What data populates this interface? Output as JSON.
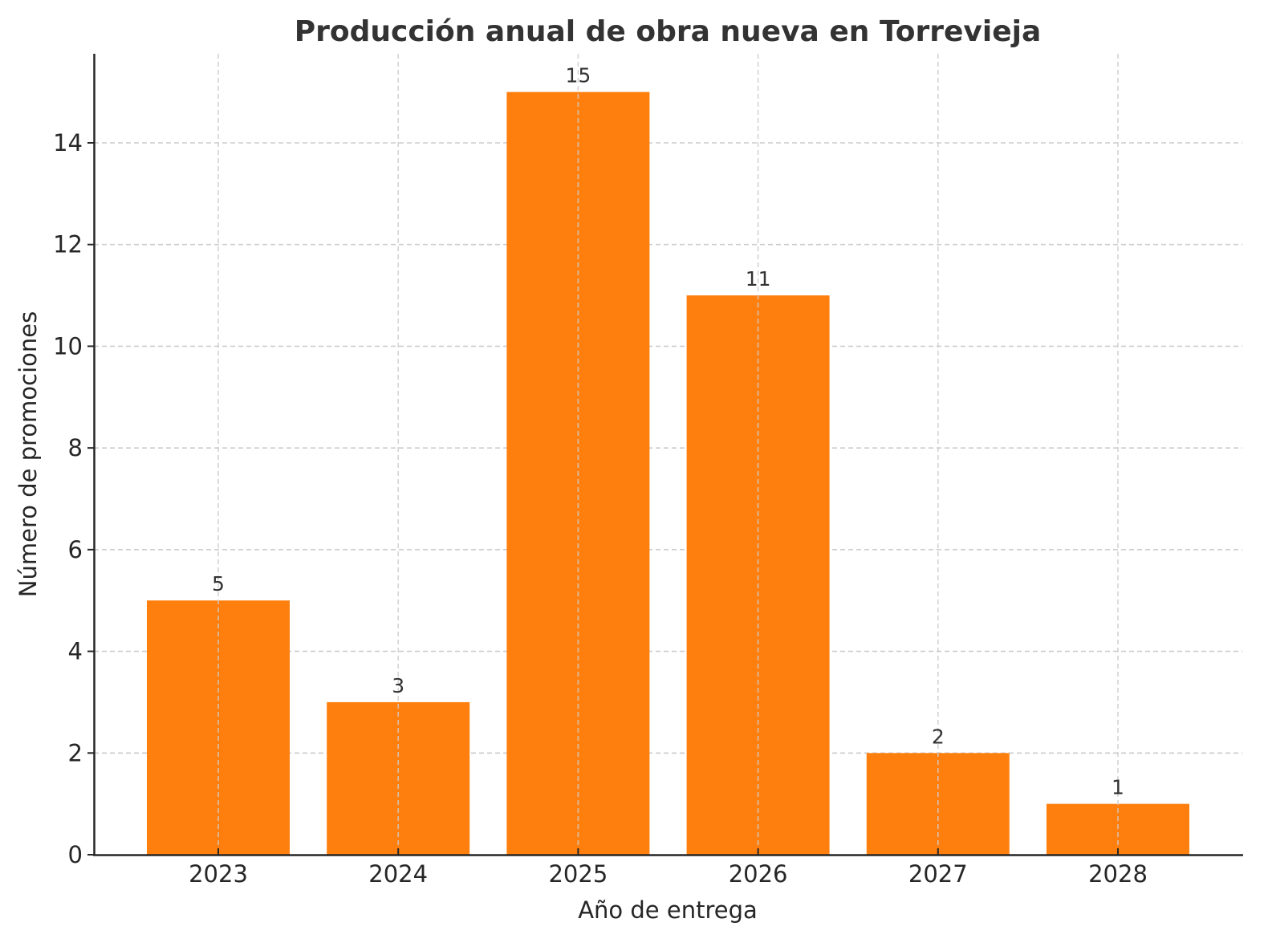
{
  "chart_data": {
    "type": "bar",
    "title": "Producción anual de obra nueva en Torrevieja",
    "xlabel": "Año de entrega",
    "ylabel": "Número de promociones",
    "categories": [
      "2023",
      "2024",
      "2025",
      "2026",
      "2027",
      "2028"
    ],
    "values": [
      5,
      3,
      15,
      11,
      2,
      1
    ],
    "value_labels": [
      "5",
      "3",
      "15",
      "11",
      "2",
      "1"
    ],
    "ylim": [
      0,
      15.75
    ],
    "yticks": [
      0,
      2,
      4,
      6,
      8,
      10,
      12,
      14
    ],
    "ytick_labels": [
      "0",
      "2",
      "4",
      "6",
      "8",
      "10",
      "12",
      "14"
    ],
    "grid": true,
    "grid_style": "dashed",
    "legend": null,
    "colors": {
      "bar": "#ff7f0e",
      "grid": "#cccccc",
      "axis": "#262626",
      "title": "#333333"
    }
  }
}
